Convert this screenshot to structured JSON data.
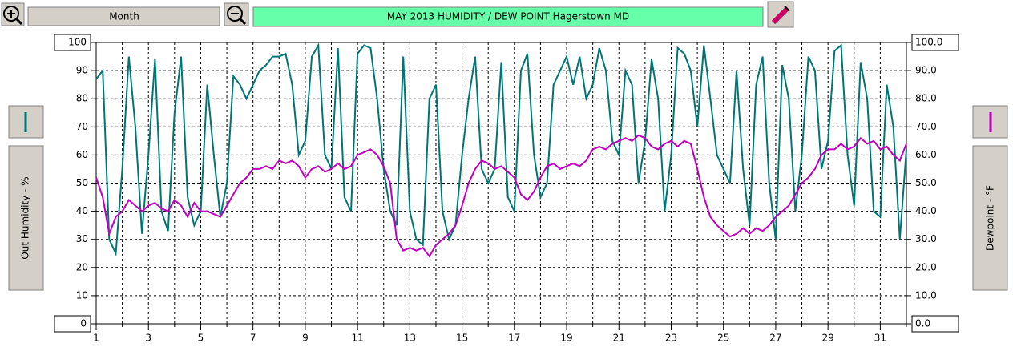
{
  "toolbar": {
    "period_button": "Month"
  },
  "chart_data": {
    "type": "line",
    "title": "MAY  2013  HUMIDITY / DEW POINT  Hagerstown MD",
    "y_label": "Out Humidity - %",
    "y2_label": "Dewpoint - °F",
    "xlim": [
      1,
      32
    ],
    "xticks": [
      1,
      3,
      5,
      7,
      9,
      11,
      13,
      15,
      17,
      19,
      21,
      23,
      25,
      27,
      29,
      31
    ],
    "minor_xticks": [
      2,
      4,
      6,
      8,
      10,
      12,
      14,
      16,
      18,
      20,
      22,
      24,
      26,
      28,
      30,
      32
    ],
    "ylim": [
      0,
      100
    ],
    "yticks": [
      0,
      10,
      20,
      30,
      40,
      50,
      60,
      70,
      80,
      90,
      100
    ],
    "y2lim": [
      0,
      100
    ],
    "y2ticks": [
      {
        "value": 0,
        "label": "0.0"
      },
      {
        "value": 10,
        "label": "10.0"
      },
      {
        "value": 20,
        "label": "20.0"
      },
      {
        "value": 30,
        "label": "30.0"
      },
      {
        "value": 40,
        "label": "40.0"
      },
      {
        "value": 50,
        "label": "50.0"
      },
      {
        "value": 60,
        "label": "60.0"
      },
      {
        "value": 70,
        "label": "70.0"
      },
      {
        "value": 80,
        "label": "80.0"
      },
      {
        "value": 90,
        "label": "90.0"
      },
      {
        "value": 100,
        "label": "100.0"
      }
    ],
    "grid": true,
    "x": [
      1,
      1.25,
      1.5,
      1.75,
      2,
      2.25,
      2.5,
      2.75,
      3,
      3.25,
      3.5,
      3.75,
      4,
      4.25,
      4.5,
      4.75,
      5,
      5.25,
      5.5,
      5.75,
      6,
      6.25,
      6.5,
      6.75,
      7,
      7.25,
      7.5,
      7.75,
      8,
      8.25,
      8.5,
      8.75,
      9,
      9.25,
      9.5,
      9.75,
      10,
      10.25,
      10.5,
      10.75,
      11,
      11.25,
      11.5,
      11.75,
      12,
      12.25,
      12.5,
      12.75,
      13,
      13.25,
      13.5,
      13.75,
      14,
      14.25,
      14.5,
      14.75,
      15,
      15.25,
      15.5,
      15.75,
      16,
      16.25,
      16.5,
      16.75,
      17,
      17.25,
      17.5,
      17.75,
      18,
      18.25,
      18.5,
      18.75,
      19,
      19.25,
      19.5,
      19.75,
      20,
      20.25,
      20.5,
      20.75,
      21,
      21.25,
      21.5,
      21.75,
      22,
      22.25,
      22.5,
      22.75,
      23,
      23.25,
      23.5,
      23.75,
      24,
      24.25,
      24.5,
      24.75,
      25,
      25.25,
      25.5,
      25.75,
      26,
      26.25,
      26.5,
      26.75,
      27,
      27.25,
      27.5,
      27.75,
      28,
      28.25,
      28.5,
      28.75,
      29,
      29.25,
      29.5,
      29.75,
      30,
      30.25,
      30.5,
      30.75,
      31,
      31.25,
      31.5,
      31.75,
      32
    ],
    "series": [
      {
        "name": "Out Humidity",
        "color": "#007575",
        "axis": "y",
        "values": [
          87,
          90,
          30,
          25,
          55,
          95,
          70,
          32,
          60,
          94,
          40,
          33,
          75,
          95,
          45,
          35,
          40,
          85,
          60,
          38,
          50,
          88,
          85,
          80,
          85,
          90,
          92,
          95,
          95,
          96,
          85,
          60,
          65,
          95,
          99,
          60,
          55,
          98,
          45,
          40,
          96,
          99,
          98,
          80,
          55,
          40,
          35,
          95,
          40,
          30,
          28,
          80,
          85,
          40,
          30,
          35,
          60,
          80,
          95,
          55,
          50,
          55,
          93,
          45,
          40,
          90,
          96,
          60,
          45,
          50,
          85,
          90,
          95,
          85,
          95,
          80,
          85,
          98,
          90,
          65,
          60,
          90,
          85,
          50,
          65,
          94,
          80,
          40,
          60,
          98,
          96,
          90,
          70,
          99,
          80,
          60,
          55,
          50,
          90,
          55,
          35,
          85,
          95,
          50,
          30,
          92,
          80,
          40,
          60,
          95,
          90,
          55,
          65,
          97,
          99,
          60,
          42,
          93,
          80,
          40,
          38,
          85,
          70,
          30,
          62
        ]
      },
      {
        "name": "Dewpoint",
        "color": "#c000c0",
        "axis": "y2",
        "values": [
          52,
          45,
          32,
          38,
          40,
          44,
          42,
          40,
          42,
          43,
          41,
          40,
          44,
          42,
          38,
          43,
          40,
          40,
          39,
          38,
          42,
          46,
          50,
          52,
          55,
          55,
          56,
          55,
          58,
          57,
          58,
          56,
          52,
          55,
          56,
          54,
          55,
          57,
          55,
          56,
          60,
          61,
          62,
          60,
          56,
          50,
          30,
          26,
          27,
          26,
          27,
          24,
          28,
          30,
          32,
          35,
          42,
          50,
          55,
          58,
          57,
          55,
          56,
          54,
          52,
          46,
          44,
          47,
          52,
          56,
          57,
          55,
          56,
          57,
          56,
          58,
          62,
          63,
          62,
          64,
          65,
          66,
          65,
          67,
          66,
          63,
          62,
          64,
          65,
          63,
          65,
          64,
          55,
          45,
          38,
          35,
          33,
          31,
          32,
          34,
          32,
          34,
          33,
          35,
          38,
          40,
          42,
          46,
          50,
          52,
          55,
          60,
          62,
          62,
          64,
          62,
          63,
          66,
          64,
          65,
          62,
          63,
          60,
          58,
          64
        ]
      }
    ]
  }
}
